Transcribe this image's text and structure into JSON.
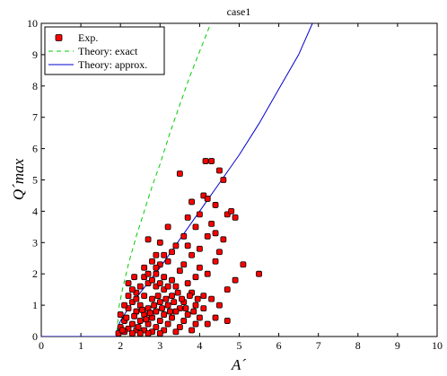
{
  "chart_data": {
    "type": "scatter",
    "title": "case1",
    "xlabel": "A´",
    "ylabel": "Q´max",
    "xlim": [
      0,
      10
    ],
    "ylim": [
      0,
      10
    ],
    "xticks": [
      "0",
      "1",
      "2",
      "3",
      "4",
      "5",
      "6",
      "7",
      "8",
      "9",
      "10"
    ],
    "yticks": [
      "0",
      "1",
      "2",
      "3",
      "4",
      "5",
      "6",
      "7",
      "8",
      "9",
      "10"
    ],
    "legend_position": "top-left",
    "grid": false,
    "series": [
      {
        "name": "Exp.",
        "kind": "markers",
        "color": "#ff0000",
        "points": [
          [
            4.15,
            5.6
          ],
          [
            4.3,
            5.6
          ],
          [
            3.5,
            5.2
          ],
          [
            4.5,
            5.3
          ],
          [
            4.6,
            5.0
          ],
          [
            4.1,
            4.5
          ],
          [
            4.2,
            4.4
          ],
          [
            4.4,
            4.2
          ],
          [
            3.8,
            4.3
          ],
          [
            4.7,
            3.9
          ],
          [
            4.8,
            4.0
          ],
          [
            3.7,
            3.8
          ],
          [
            4.0,
            3.9
          ],
          [
            4.3,
            3.6
          ],
          [
            4.9,
            3.8
          ],
          [
            3.2,
            3.5
          ],
          [
            3.9,
            3.5
          ],
          [
            4.2,
            3.2
          ],
          [
            4.4,
            3.3
          ],
          [
            4.6,
            3.1
          ],
          [
            2.7,
            3.1
          ],
          [
            3.6,
            3.2
          ],
          [
            3.0,
            3.0
          ],
          [
            3.4,
            2.9
          ],
          [
            3.7,
            2.9
          ],
          [
            4.0,
            2.8
          ],
          [
            4.5,
            2.7
          ],
          [
            3.3,
            2.7
          ],
          [
            3.8,
            2.6
          ],
          [
            2.9,
            2.6
          ],
          [
            5.5,
            2.0
          ],
          [
            5.1,
            2.3
          ],
          [
            4.9,
            1.8
          ],
          [
            4.7,
            1.5
          ],
          [
            4.4,
            2.4
          ],
          [
            4.2,
            2.0
          ],
          [
            4.0,
            2.2
          ],
          [
            3.9,
            1.9
          ],
          [
            3.6,
            2.3
          ],
          [
            3.5,
            2.1
          ],
          [
            3.2,
            2.4
          ],
          [
            3.0,
            2.3
          ],
          [
            2.8,
            2.4
          ],
          [
            2.6,
            2.2
          ],
          [
            2.9,
            2.0
          ],
          [
            3.1,
            1.9
          ],
          [
            3.3,
            1.8
          ],
          [
            3.4,
            1.6
          ],
          [
            3.7,
            1.7
          ],
          [
            3.8,
            1.4
          ],
          [
            4.1,
            1.3
          ],
          [
            4.3,
            1.2
          ],
          [
            4.5,
            1.0
          ],
          [
            4.1,
            0.9
          ],
          [
            3.9,
            1.0
          ],
          [
            3.6,
            1.1
          ],
          [
            3.5,
            0.9
          ],
          [
            3.3,
            1.3
          ],
          [
            3.1,
            1.5
          ],
          [
            2.9,
            1.6
          ],
          [
            2.7,
            1.7
          ],
          [
            2.5,
            1.6
          ],
          [
            2.4,
            1.4
          ],
          [
            2.3,
            1.5
          ],
          [
            2.6,
            1.3
          ],
          [
            2.8,
            1.2
          ],
          [
            3.0,
            1.1
          ],
          [
            3.2,
            1.0
          ],
          [
            3.4,
            0.8
          ],
          [
            3.7,
            0.7
          ],
          [
            4.0,
            0.6
          ],
          [
            4.4,
            0.6
          ],
          [
            4.7,
            0.5
          ],
          [
            4.2,
            0.4
          ],
          [
            3.9,
            0.4
          ],
          [
            3.6,
            0.5
          ],
          [
            3.3,
            0.6
          ],
          [
            3.1,
            0.7
          ],
          [
            2.9,
            0.8
          ],
          [
            2.7,
            0.9
          ],
          [
            2.5,
            1.0
          ],
          [
            2.3,
            1.1
          ],
          [
            2.2,
            0.9
          ],
          [
            2.4,
            0.8
          ],
          [
            2.6,
            0.7
          ],
          [
            2.8,
            0.6
          ],
          [
            3.0,
            0.5
          ],
          [
            3.2,
            0.4
          ],
          [
            3.5,
            0.3
          ],
          [
            3.8,
            0.2
          ],
          [
            2.2,
            1.3
          ],
          [
            2.1,
            1.0
          ],
          [
            2.0,
            0.7
          ],
          [
            2.1,
            0.5
          ],
          [
            2.3,
            0.4
          ],
          [
            2.5,
            0.5
          ],
          [
            2.7,
            0.4
          ],
          [
            2.9,
            0.3
          ],
          [
            3.1,
            0.2
          ],
          [
            3.4,
            0.15
          ],
          [
            2.0,
            0.3
          ],
          [
            2.2,
            0.25
          ],
          [
            2.4,
            0.2
          ],
          [
            2.6,
            0.2
          ],
          [
            2.8,
            0.15
          ],
          [
            3.0,
            0.1
          ],
          [
            2.1,
            0.15
          ],
          [
            2.3,
            0.1
          ],
          [
            2.5,
            0.1
          ],
          [
            2.7,
            0.1
          ],
          [
            1.95,
            0.1
          ],
          [
            2.05,
            0.2
          ],
          [
            2.15,
            0.6
          ],
          [
            2.35,
            0.65
          ],
          [
            2.45,
            0.3
          ],
          [
            2.55,
            0.85
          ],
          [
            2.65,
            0.55
          ],
          [
            2.75,
            0.75
          ],
          [
            2.85,
            1.0
          ],
          [
            2.95,
            1.3
          ],
          [
            3.05,
            0.9
          ],
          [
            3.15,
            1.2
          ],
          [
            3.25,
            0.8
          ],
          [
            3.35,
            1.1
          ],
          [
            3.45,
            1.4
          ],
          [
            3.55,
            1.2
          ],
          [
            3.65,
            0.9
          ],
          [
            3.75,
            1.3
          ],
          [
            3.85,
            0.8
          ],
          [
            3.95,
            1.2
          ],
          [
            2.6,
            1.9
          ],
          [
            2.7,
            2.0
          ],
          [
            2.8,
            1.8
          ],
          [
            3.0,
            1.7
          ],
          [
            3.2,
            1.6
          ],
          [
            2.4,
            1.2
          ],
          [
            2.2,
            1.7
          ],
          [
            2.35,
            1.9
          ],
          [
            2.9,
            2.2
          ],
          [
            3.1,
            2.6
          ]
        ]
      },
      {
        "name": "Theory: exact",
        "kind": "line",
        "style": "dashed",
        "color": "#00cc00",
        "points": [
          [
            0,
            0
          ],
          [
            1.92,
            0
          ],
          [
            1.92,
            0.3
          ],
          [
            1.97,
            1.0
          ],
          [
            2.05,
            1.5
          ],
          [
            2.2,
            2.3
          ],
          [
            2.4,
            3.2
          ],
          [
            2.6,
            4.0
          ],
          [
            2.8,
            4.8
          ],
          [
            3.0,
            5.5
          ],
          [
            3.25,
            6.5
          ],
          [
            3.5,
            7.4
          ],
          [
            3.75,
            8.3
          ],
          [
            4.0,
            9.1
          ],
          [
            4.25,
            9.9
          ],
          [
            4.28,
            10.0
          ]
        ]
      },
      {
        "name": "Theory: approx.",
        "kind": "line",
        "style": "solid",
        "color": "#0000cc",
        "points": [
          [
            0,
            0
          ],
          [
            1.92,
            0
          ],
          [
            1.94,
            0.3
          ],
          [
            2.0,
            0.5
          ],
          [
            2.2,
            0.9
          ],
          [
            2.5,
            1.4
          ],
          [
            3.0,
            2.2
          ],
          [
            3.5,
            3.1
          ],
          [
            4.0,
            4.0
          ],
          [
            4.5,
            4.9
          ],
          [
            5.0,
            5.8
          ],
          [
            5.5,
            6.8
          ],
          [
            6.0,
            7.9
          ],
          [
            6.5,
            9.0
          ],
          [
            6.85,
            10.0
          ]
        ]
      }
    ]
  }
}
